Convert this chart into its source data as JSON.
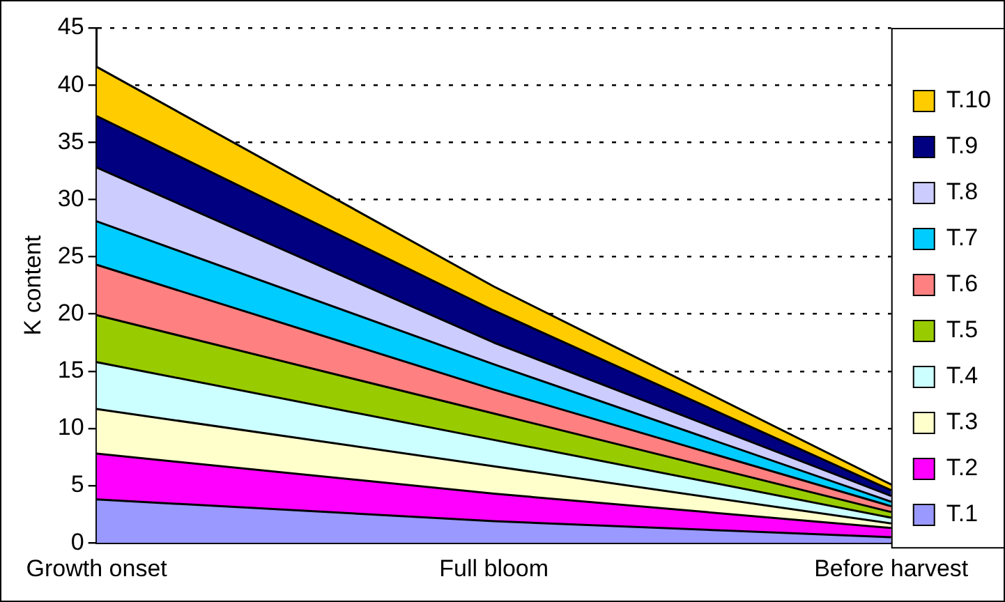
{
  "chart_data": {
    "type": "area",
    "stacked": true,
    "ylabel": "K content",
    "categories": [
      "Growth onset",
      "Full bloom",
      "Before harvest"
    ],
    "ylim": [
      0,
      45
    ],
    "yticks": [
      0,
      5,
      10,
      15,
      20,
      25,
      30,
      35,
      40,
      45
    ],
    "grid": "y",
    "legend": "right",
    "marker": "none",
    "line_style": "solid",
    "series": [
      {
        "name": "T.1",
        "color": "#9999ff",
        "values": [
          3.8,
          1.9,
          0.5
        ]
      },
      {
        "name": "T.2",
        "color": "#ff00ff",
        "values": [
          4.0,
          2.4,
          0.8
        ]
      },
      {
        "name": "T.3",
        "color": "#ffffcc",
        "values": [
          3.9,
          2.4,
          0.4
        ]
      },
      {
        "name": "T.4",
        "color": "#ccffff",
        "values": [
          4.1,
          2.3,
          0.5
        ]
      },
      {
        "name": "T.5",
        "color": "#99cc00",
        "values": [
          4.1,
          2.3,
          0.5
        ]
      },
      {
        "name": "T.6",
        "color": "#ff8080",
        "values": [
          4.4,
          2.1,
          0.5
        ]
      },
      {
        "name": "T.7",
        "color": "#00ccff",
        "values": [
          3.8,
          2.2,
          0.4
        ]
      },
      {
        "name": "T.8",
        "color": "#ccccff",
        "values": [
          4.7,
          1.9,
          0.5
        ]
      },
      {
        "name": "T.9",
        "color": "#000080",
        "values": [
          4.5,
          2.8,
          0.5
        ]
      },
      {
        "name": "T.10",
        "color": "#ffcc00",
        "values": [
          4.3,
          2.1,
          0.5
        ]
      }
    ]
  }
}
